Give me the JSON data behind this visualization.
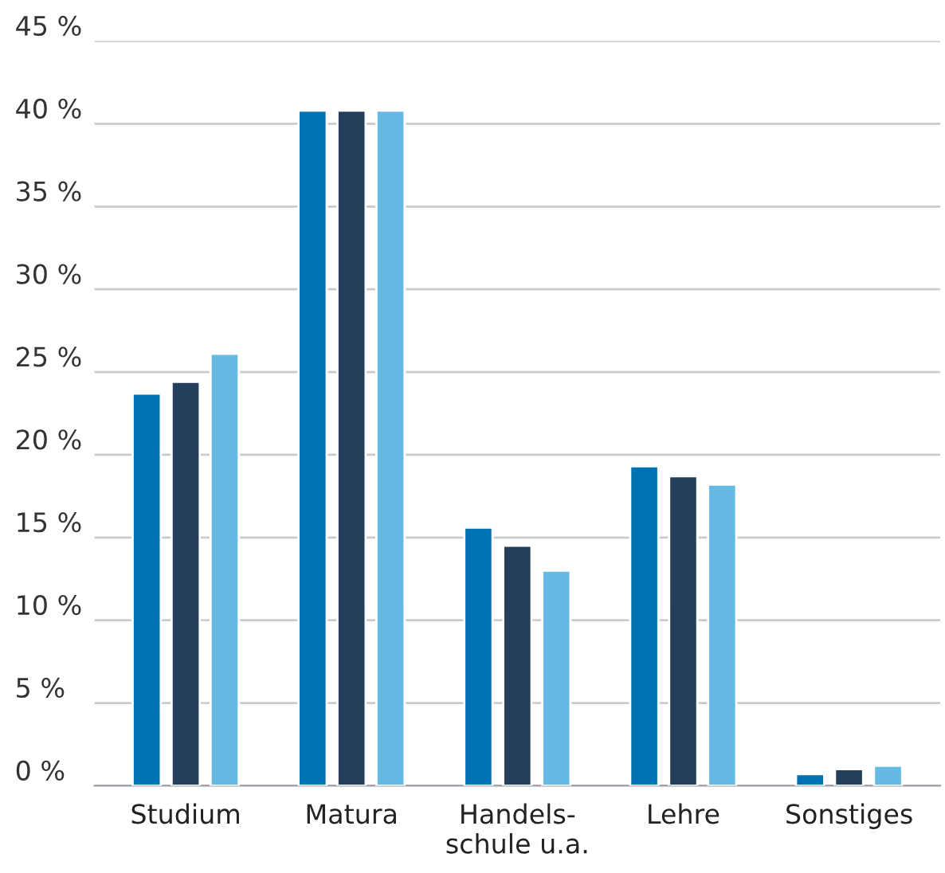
{
  "chart_data": {
    "type": "bar",
    "categories": [
      "Studium",
      "Matura",
      "Handels-\nschule u.a.",
      "Lehre",
      "Sonstiges"
    ],
    "series": [
      {
        "color": "#0071b3",
        "values": [
          23.7,
          40.8,
          15.6,
          19.3,
          0.7
        ]
      },
      {
        "color": "#243f5c",
        "values": [
          24.4,
          40.8,
          14.5,
          18.7,
          1.0
        ]
      },
      {
        "color": "#66b9e2",
        "values": [
          26.1,
          40.8,
          13.0,
          18.2,
          1.2
        ]
      }
    ],
    "ylim": [
      0,
      45
    ],
    "yticks": [
      {
        "value": 0,
        "label": "0 %"
      },
      {
        "value": 5,
        "label": "5 %"
      },
      {
        "value": 10,
        "label": "10 %"
      },
      {
        "value": 15,
        "label": "15 %"
      },
      {
        "value": 20,
        "label": "20 %"
      },
      {
        "value": 25,
        "label": "25 %"
      },
      {
        "value": 30,
        "label": "30 %"
      },
      {
        "value": 35,
        "label": "35 %"
      },
      {
        "value": 40,
        "label": "40 %"
      },
      {
        "value": 45,
        "label": "45 %"
      }
    ],
    "grid": "y",
    "legend": false
  }
}
